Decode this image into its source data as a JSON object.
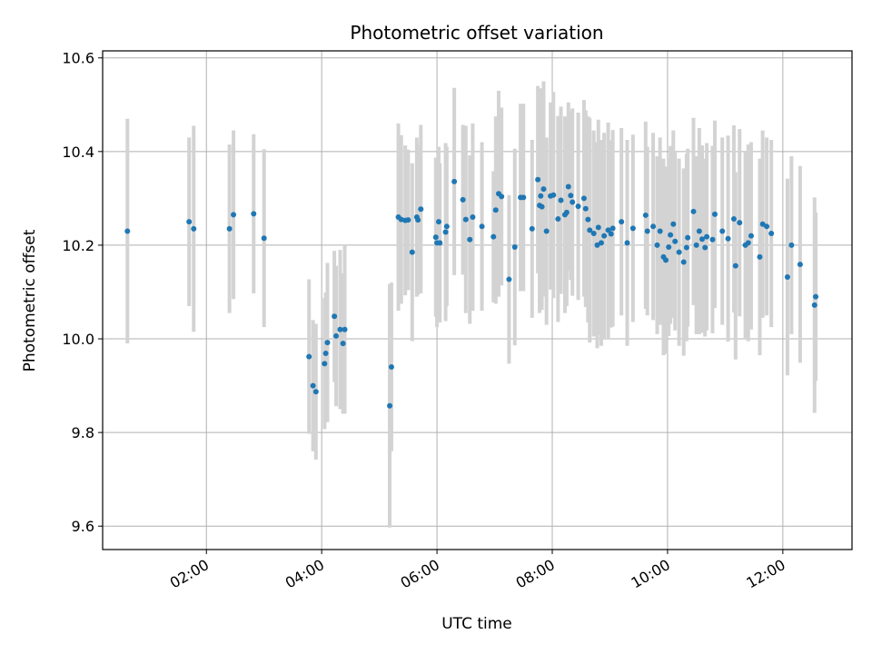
{
  "chart_data": {
    "type": "scatter",
    "title": "Photometric offset variation",
    "xlabel": "UTC time",
    "ylabel": "Photometric offset",
    "grid": true,
    "colors": {
      "point": "#1f77b4",
      "errorbar": "#d3d3d3",
      "grid": "#b0b0b0"
    },
    "xlim": [
      0.2,
      13.2
    ],
    "ylim": [
      9.55,
      10.615
    ],
    "x_ticks": [
      {
        "value": 2,
        "label": "02:00"
      },
      {
        "value": 4,
        "label": "04:00"
      },
      {
        "value": 6,
        "label": "06:00"
      },
      {
        "value": 8,
        "label": "08:00"
      },
      {
        "value": 10,
        "label": "10:00"
      },
      {
        "value": 12,
        "label": "12:00"
      }
    ],
    "y_ticks": [
      {
        "value": 9.6,
        "label": "9.6"
      },
      {
        "value": 9.8,
        "label": "9.8"
      },
      {
        "value": 10.0,
        "label": "10.0"
      },
      {
        "value": 10.2,
        "label": "10.2"
      },
      {
        "value": 10.4,
        "label": "10.4"
      },
      {
        "value": 10.6,
        "label": "10.6"
      }
    ],
    "x_unit": "UTC hours",
    "points": [
      [
        0.63,
        10.23,
        0.24
      ],
      [
        1.7,
        10.25,
        0.18
      ],
      [
        1.78,
        10.235,
        0.22
      ],
      [
        2.4,
        10.235,
        0.18
      ],
      [
        2.47,
        10.265,
        0.18
      ],
      [
        2.82,
        10.267,
        0.17
      ],
      [
        3.0,
        10.215,
        0.19
      ],
      [
        3.78,
        9.962,
        0.165
      ],
      [
        3.85,
        9.9,
        0.14
      ],
      [
        3.9,
        9.887,
        0.145
      ],
      [
        4.05,
        9.947,
        0.14
      ],
      [
        4.07,
        9.969,
        0.13
      ],
      [
        4.1,
        9.992,
        0.17
      ],
      [
        4.22,
        10.048,
        0.14
      ],
      [
        4.25,
        10.006,
        0.15
      ],
      [
        4.32,
        10.02,
        0.17
      ],
      [
        4.37,
        9.99,
        0.15
      ],
      [
        4.4,
        10.02,
        0.18
      ],
      [
        5.18,
        9.857,
        0.26
      ],
      [
        5.21,
        9.94,
        0.18
      ],
      [
        5.33,
        10.26,
        0.2
      ],
      [
        5.38,
        10.255,
        0.18
      ],
      [
        5.45,
        10.253,
        0.16
      ],
      [
        5.5,
        10.254,
        0.15
      ],
      [
        5.57,
        10.185,
        0.19
      ],
      [
        5.65,
        10.26,
        0.17
      ],
      [
        5.67,
        10.254,
        0.16
      ],
      [
        5.72,
        10.277,
        0.18
      ],
      [
        5.98,
        10.217,
        0.17
      ],
      [
        6.0,
        10.205,
        0.18
      ],
      [
        6.03,
        10.25,
        0.16
      ],
      [
        6.05,
        10.205,
        0.17
      ],
      [
        6.15,
        10.228,
        0.19
      ],
      [
        6.17,
        10.24,
        0.17
      ],
      [
        6.3,
        10.336,
        0.2
      ],
      [
        6.45,
        10.297,
        0.16
      ],
      [
        6.5,
        10.255,
        0.2
      ],
      [
        6.57,
        10.212,
        0.18
      ],
      [
        6.62,
        10.26,
        0.2
      ],
      [
        6.78,
        10.24,
        0.18
      ],
      [
        6.98,
        10.218,
        0.14
      ],
      [
        7.02,
        10.275,
        0.2
      ],
      [
        7.07,
        10.31,
        0.22
      ],
      [
        7.12,
        10.304,
        0.19
      ],
      [
        7.25,
        10.127,
        0.18
      ],
      [
        7.35,
        10.196,
        0.21
      ],
      [
        7.45,
        10.302,
        0.2
      ],
      [
        7.5,
        10.302,
        0.2
      ],
      [
        7.65,
        10.235,
        0.19
      ],
      [
        7.75,
        10.34,
        0.2
      ],
      [
        7.78,
        10.285,
        0.23
      ],
      [
        7.8,
        10.305,
        0.23
      ],
      [
        7.82,
        10.282,
        0.22
      ],
      [
        7.85,
        10.32,
        0.23
      ],
      [
        7.9,
        10.23,
        0.2
      ],
      [
        7.97,
        10.305,
        0.2
      ],
      [
        8.02,
        10.307,
        0.22
      ],
      [
        8.1,
        10.256,
        0.22
      ],
      [
        8.15,
        10.296,
        0.2
      ],
      [
        8.22,
        10.265,
        0.21
      ],
      [
        8.25,
        10.27,
        0.2
      ],
      [
        8.28,
        10.325,
        0.18
      ],
      [
        8.32,
        10.306,
        0.18
      ],
      [
        8.35,
        10.292,
        0.2
      ],
      [
        8.45,
        10.283,
        0.2
      ],
      [
        8.55,
        10.3,
        0.21
      ],
      [
        8.58,
        10.278,
        0.21
      ],
      [
        8.62,
        10.255,
        0.22
      ],
      [
        8.65,
        10.232,
        0.24
      ],
      [
        8.72,
        10.225,
        0.22
      ],
      [
        8.78,
        10.2,
        0.22
      ],
      [
        8.8,
        10.238,
        0.23
      ],
      [
        8.85,
        10.205,
        0.22
      ],
      [
        8.9,
        10.22,
        0.22
      ],
      [
        8.97,
        10.232,
        0.23
      ],
      [
        9.02,
        10.224,
        0.2
      ],
      [
        9.05,
        10.236,
        0.21
      ],
      [
        9.2,
        10.25,
        0.2
      ],
      [
        9.3,
        10.205,
        0.22
      ],
      [
        9.4,
        10.236,
        0.2
      ],
      [
        9.62,
        10.264,
        0.2
      ],
      [
        9.65,
        10.23,
        0.18
      ],
      [
        9.75,
        10.24,
        0.2
      ],
      [
        9.82,
        10.2,
        0.19
      ],
      [
        9.87,
        10.23,
        0.2
      ],
      [
        9.93,
        10.175,
        0.21
      ],
      [
        9.97,
        10.168,
        0.2
      ],
      [
        10.02,
        10.196,
        0.19
      ],
      [
        10.05,
        10.222,
        0.19
      ],
      [
        10.1,
        10.245,
        0.2
      ],
      [
        10.13,
        10.208,
        0.19
      ],
      [
        10.2,
        10.185,
        0.2
      ],
      [
        10.28,
        10.164,
        0.2
      ],
      [
        10.33,
        10.195,
        0.2
      ],
      [
        10.35,
        10.216,
        0.19
      ],
      [
        10.45,
        10.272,
        0.2
      ],
      [
        10.5,
        10.2,
        0.19
      ],
      [
        10.55,
        10.23,
        0.22
      ],
      [
        10.6,
        10.213,
        0.2
      ],
      [
        10.65,
        10.195,
        0.19
      ],
      [
        10.68,
        10.218,
        0.2
      ],
      [
        10.78,
        10.212,
        0.2
      ],
      [
        10.82,
        10.266,
        0.2
      ],
      [
        10.95,
        10.23,
        0.2
      ],
      [
        11.05,
        10.214,
        0.22
      ],
      [
        11.15,
        10.256,
        0.2
      ],
      [
        11.18,
        10.156,
        0.2
      ],
      [
        11.25,
        10.248,
        0.2
      ],
      [
        11.35,
        10.2,
        0.2
      ],
      [
        11.4,
        10.205,
        0.21
      ],
      [
        11.45,
        10.22,
        0.2
      ],
      [
        11.6,
        10.175,
        0.21
      ],
      [
        11.65,
        10.245,
        0.2
      ],
      [
        11.72,
        10.24,
        0.19
      ],
      [
        11.8,
        10.225,
        0.2
      ],
      [
        12.08,
        10.132,
        0.21
      ],
      [
        12.15,
        10.2,
        0.19
      ],
      [
        12.3,
        10.159,
        0.21
      ],
      [
        12.55,
        10.072,
        0.23
      ],
      [
        12.57,
        10.09,
        0.18
      ]
    ]
  }
}
